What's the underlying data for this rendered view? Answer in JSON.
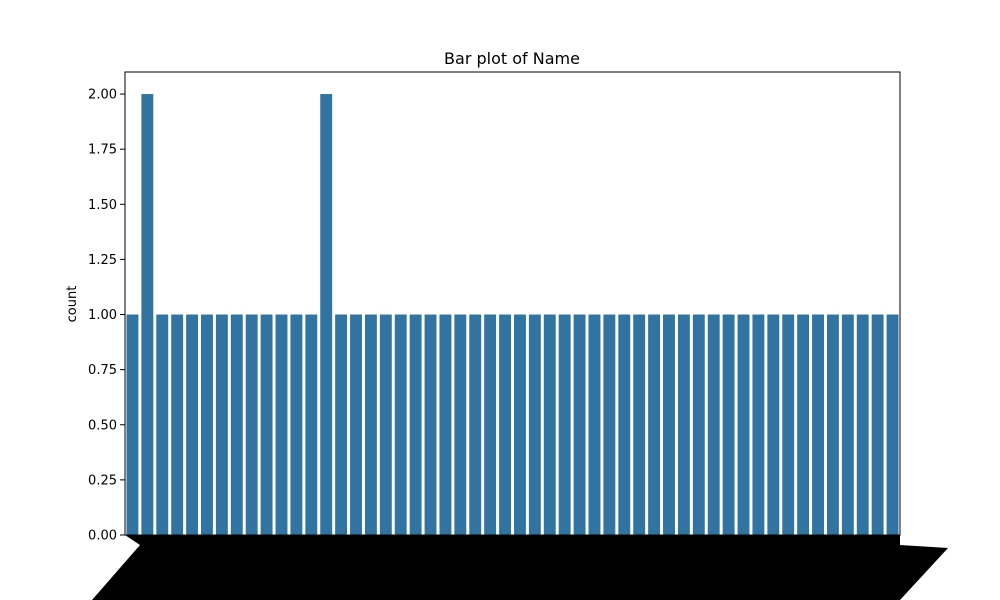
{
  "chart_data": {
    "type": "bar",
    "title": "Bar plot of Name",
    "xlabel": "",
    "ylabel": "count",
    "ylim": [
      0,
      2.1
    ],
    "yticks": [
      "0.00",
      "0.25",
      "0.50",
      "0.75",
      "1.00",
      "1.25",
      "1.50",
      "1.75",
      "2.00"
    ],
    "grid": false,
    "legend": "none",
    "categories_note": "",
    "bar_color": "#3274a1",
    "values": [
      1,
      2,
      1,
      1,
      1,
      1,
      1,
      1,
      1,
      1,
      1,
      1,
      1,
      2,
      1,
      1,
      1,
      1,
      1,
      1,
      1,
      1,
      1,
      1,
      1,
      1,
      1,
      1,
      1,
      1,
      1,
      1,
      1,
      1,
      1,
      1,
      1,
      1,
      1,
      1,
      1,
      1,
      1,
      1,
      1,
      1,
      1,
      1,
      1,
      1,
      1,
      1
    ]
  }
}
